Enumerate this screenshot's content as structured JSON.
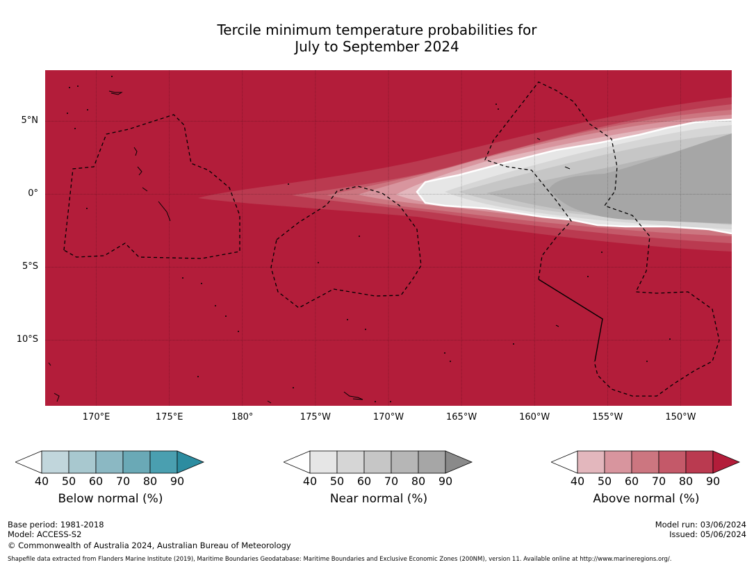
{
  "title_line1": "Tercile minimum temperature probabilities for",
  "title_line2": "July to September 2024",
  "map": {
    "lon_range": [
      166.5,
      213.5
    ],
    "lat_range": [
      -14.5,
      8.5
    ],
    "background_color": "#b31d3a",
    "lat_ticks": [
      {
        "value": 5,
        "label": "5°N"
      },
      {
        "value": 0,
        "label": "0°"
      },
      {
        "value": -5,
        "label": "5°S"
      },
      {
        "value": -10,
        "label": "10°S"
      }
    ],
    "lon_ticks": [
      {
        "value": 170,
        "label": "170°E"
      },
      {
        "value": 175,
        "label": "175°E"
      },
      {
        "value": 180,
        "label": "180°"
      },
      {
        "value": 185,
        "label": "175°W"
      },
      {
        "value": 190,
        "label": "170°W"
      },
      {
        "value": 195,
        "label": "165°W"
      },
      {
        "value": 200,
        "label": "160°W"
      },
      {
        "value": 205,
        "label": "155°W"
      },
      {
        "value": 210,
        "label": "150°W"
      }
    ]
  },
  "colorbars": [
    {
      "name": "below-normal",
      "title": "Below normal (%)",
      "labels": [
        "40",
        "50",
        "60",
        "70",
        "80",
        "90"
      ],
      "colors": [
        "#c1d6dc",
        "#a8c8cf",
        "#8bb8c3",
        "#6aa9b6",
        "#4a9fb0",
        "#2c8ca0"
      ]
    },
    {
      "name": "near-normal",
      "title": "Near normal (%)",
      "labels": [
        "40",
        "50",
        "60",
        "70",
        "80",
        "90"
      ],
      "colors": [
        "#e6e6e6",
        "#d6d6d6",
        "#c6c6c6",
        "#b6b6b6",
        "#a6a6a6",
        "#8a8a8a"
      ]
    },
    {
      "name": "above-normal",
      "title": "Above normal (%)",
      "labels": [
        "40",
        "50",
        "60",
        "70",
        "80",
        "90"
      ],
      "colors": [
        "#e3b7bd",
        "#d8959e",
        "#cc7680",
        "#c45969",
        "#ba3a50",
        "#b31d3a"
      ]
    }
  ],
  "footer": {
    "base_period": "Base period: 1981-2018",
    "model": "Model: ACCESS-S2",
    "copyright": "© Commonwealth of Australia 2024, Australian Bureau of Meteorology",
    "model_run": "Model run: 03/06/2024",
    "issued": "Issued: 05/06/2024",
    "shapefile": "Shapefile data extracted from Flanders Marine Institute (2019), Maritime Boundaries Geodatabase: Maritime Boundaries and Exclusive Economic Zones (200NM), version 11. Available online at http://www.marineregions.org/."
  }
}
